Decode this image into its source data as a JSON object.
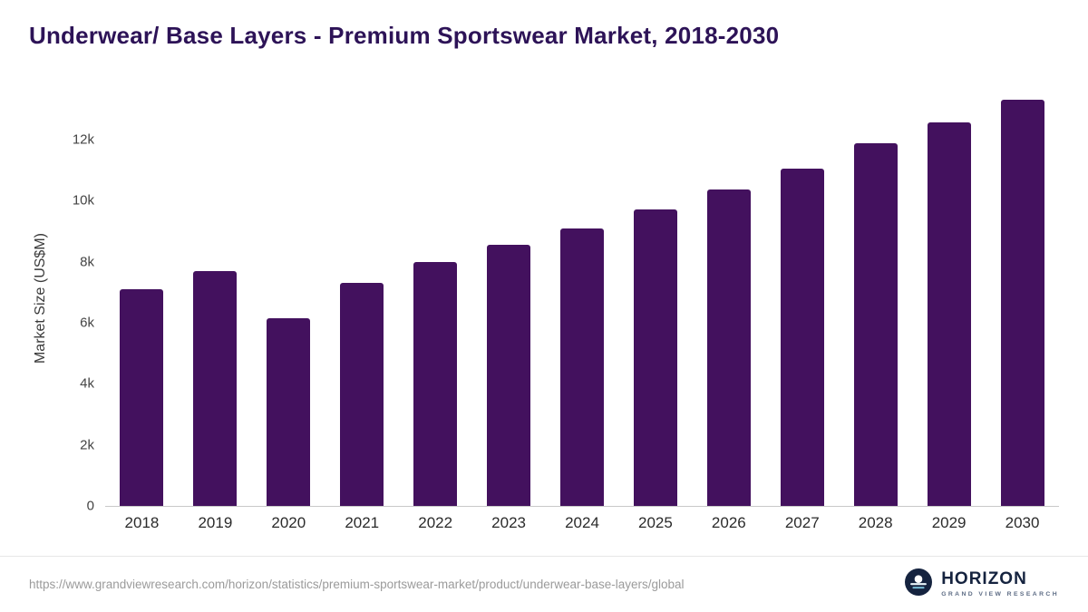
{
  "title": "Underwear/ Base Layers - Premium Sportswear Market, 2018-2030",
  "chart_data": {
    "type": "bar",
    "categories": [
      "2018",
      "2019",
      "2020",
      "2021",
      "2022",
      "2023",
      "2024",
      "2025",
      "2026",
      "2027",
      "2028",
      "2029",
      "2030"
    ],
    "values": [
      7100,
      7700,
      6150,
      7300,
      8000,
      8550,
      9100,
      9700,
      10350,
      11050,
      11880,
      12550,
      13300
    ],
    "title": "Underwear/ Base Layers - Premium Sportswear Market, 2018-2030",
    "xlabel": "",
    "ylabel": "Market Size (US$M)",
    "ylim": [
      0,
      13600
    ],
    "yticks": [
      0,
      2000,
      4000,
      6000,
      8000,
      10000,
      12000
    ],
    "ytick_labels": [
      "0",
      "2k",
      "4k",
      "6k",
      "8k",
      "10k",
      "12k"
    ],
    "bar_color": "#43115e",
    "grid": false,
    "legend": "none"
  },
  "footer": {
    "source_url": "https://www.grandviewresearch.com/horizon/statistics/premium-sportswear-market/product/underwear-base-layers/global",
    "logo_name": "HORIZON",
    "logo_subtitle": "GRAND VIEW RESEARCH"
  },
  "colors": {
    "title": "#2d1357",
    "bar": "#43115e",
    "axis_line": "#c9c9c9",
    "tick_text": "#444444",
    "url_text": "#9b9b9b",
    "logo_navy": "#15233f",
    "logo_blue": "#7fc6e0"
  }
}
